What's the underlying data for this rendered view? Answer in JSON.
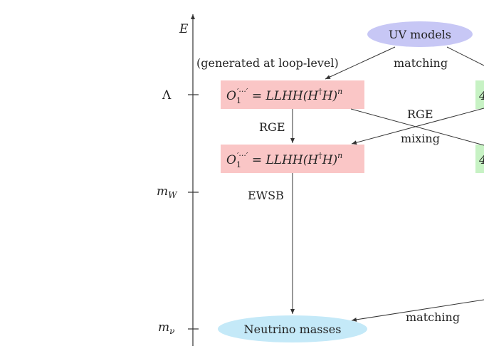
{
  "axis": {
    "energy_label": "E",
    "ticks": [
      {
        "symbol": "Λ",
        "sub": ""
      },
      {
        "symbol": "m",
        "sub": "W"
      },
      {
        "symbol": "m",
        "sub": "ν"
      }
    ]
  },
  "nodes": {
    "uv_models": "UV models",
    "neutrino_masses": "Neutrino masses",
    "operator": {
      "O": "O",
      "sub": "1",
      "sup": "′···′",
      "eq": " = LLHH(H",
      "dagger": "†",
      "rest": "H)",
      "exp": "n"
    },
    "right_box_glyph": "4"
  },
  "labels": {
    "generated_note": "(generated at loop-level)",
    "matching_top": "matching",
    "rge_left": "RGE",
    "rge_cross": "RGE",
    "mixing": "mixing",
    "ewsb": "EWSB",
    "matching_bottom": "matching"
  },
  "colors": {
    "uv_fill": "#c7c7f5",
    "operator_fill": "#fac6c6",
    "right_fill": "#c7f2c4",
    "neutrino_fill": "#c4e9f8",
    "stroke": "#333333"
  }
}
